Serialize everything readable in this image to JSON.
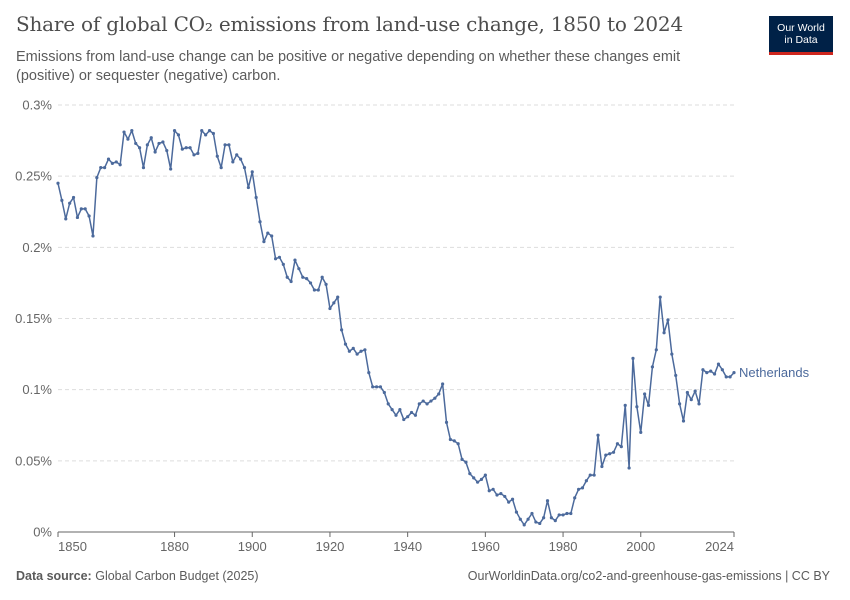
{
  "header": {
    "title": "Share of global CO₂ emissions from land-use change, 1850 to 2024",
    "subtitle": "Emissions from land-use change can be positive or negative depending on whether these changes emit (positive) or sequester (negative) carbon.",
    "logo_line1": "Our World",
    "logo_line2": "in Data"
  },
  "footer": {
    "source_label": "Data source:",
    "source_value": "Global Carbon Budget (2025)",
    "url_license": "OurWorldinData.org/co2-and-greenhouse-gas-emissions | CC BY"
  },
  "colors": {
    "series": "#4c6a9c",
    "grid": "#dddddd",
    "axis": "#666666",
    "logo_bg": "#002147",
    "logo_accent": "#ce261e"
  },
  "chart_data": {
    "type": "line",
    "title": "Share of global CO₂ emissions from land-use change, 1850 to 2024",
    "xlim": [
      1850,
      2024
    ],
    "ylim": [
      0,
      0.3
    ],
    "x_ticks": [
      1850,
      1880,
      1900,
      1920,
      1940,
      1960,
      1980,
      2000,
      2024
    ],
    "x_tick_labels": [
      "1850",
      "1880",
      "1900",
      "1920",
      "1940",
      "1960",
      "1980",
      "2000",
      "2024"
    ],
    "y_ticks": [
      0,
      0.05,
      0.1,
      0.15,
      0.2,
      0.25,
      0.3
    ],
    "y_tick_labels": [
      "0%",
      "0.05%",
      "0.1%",
      "0.15%",
      "0.2%",
      "0.25%",
      "0.3%"
    ],
    "grid": true,
    "legend": "end-label",
    "series": [
      {
        "name": "Netherlands",
        "x": [
          1850,
          1851,
          1852,
          1853,
          1854,
          1855,
          1856,
          1857,
          1858,
          1859,
          1860,
          1861,
          1862,
          1863,
          1864,
          1865,
          1866,
          1867,
          1868,
          1869,
          1870,
          1871,
          1872,
          1873,
          1874,
          1875,
          1876,
          1877,
          1878,
          1879,
          1880,
          1881,
          1882,
          1883,
          1884,
          1885,
          1886,
          1887,
          1888,
          1889,
          1890,
          1891,
          1892,
          1893,
          1894,
          1895,
          1896,
          1897,
          1898,
          1899,
          1900,
          1901,
          1902,
          1903,
          1904,
          1905,
          1906,
          1907,
          1908,
          1909,
          1910,
          1911,
          1912,
          1913,
          1914,
          1915,
          1916,
          1917,
          1918,
          1919,
          1920,
          1921,
          1922,
          1923,
          1924,
          1925,
          1926,
          1927,
          1928,
          1929,
          1930,
          1931,
          1932,
          1933,
          1934,
          1935,
          1936,
          1937,
          1938,
          1939,
          1940,
          1941,
          1942,
          1943,
          1944,
          1945,
          1946,
          1947,
          1948,
          1949,
          1950,
          1951,
          1952,
          1953,
          1954,
          1955,
          1956,
          1957,
          1958,
          1959,
          1960,
          1961,
          1962,
          1963,
          1964,
          1965,
          1966,
          1967,
          1968,
          1969,
          1970,
          1971,
          1972,
          1973,
          1974,
          1975,
          1976,
          1977,
          1978,
          1979,
          1980,
          1981,
          1982,
          1983,
          1984,
          1985,
          1986,
          1987,
          1988,
          1989,
          1990,
          1991,
          1992,
          1993,
          1994,
          1995,
          1996,
          1997,
          1998,
          1999,
          2000,
          2001,
          2002,
          2003,
          2004,
          2005,
          2006,
          2007,
          2008,
          2009,
          2010,
          2011,
          2012,
          2013,
          2014,
          2015,
          2016,
          2017,
          2018,
          2019,
          2020,
          2021,
          2022,
          2023,
          2024
        ],
        "values": [
          0.245,
          0.233,
          0.22,
          0.231,
          0.235,
          0.221,
          0.227,
          0.227,
          0.222,
          0.208,
          0.249,
          0.256,
          0.256,
          0.262,
          0.259,
          0.26,
          0.258,
          0.281,
          0.276,
          0.282,
          0.273,
          0.27,
          0.256,
          0.272,
          0.277,
          0.267,
          0.273,
          0.274,
          0.268,
          0.255,
          0.282,
          0.279,
          0.269,
          0.27,
          0.27,
          0.265,
          0.266,
          0.282,
          0.279,
          0.282,
          0.28,
          0.264,
          0.256,
          0.272,
          0.272,
          0.26,
          0.265,
          0.262,
          0.256,
          0.242,
          0.253,
          0.235,
          0.218,
          0.204,
          0.21,
          0.208,
          0.192,
          0.193,
          0.188,
          0.179,
          0.176,
          0.191,
          0.185,
          0.179,
          0.178,
          0.175,
          0.17,
          0.17,
          0.179,
          0.174,
          0.157,
          0.161,
          0.165,
          0.142,
          0.132,
          0.127,
          0.129,
          0.125,
          0.127,
          0.128,
          0.112,
          0.102,
          0.102,
          0.102,
          0.098,
          0.09,
          0.086,
          0.082,
          0.086,
          0.079,
          0.081,
          0.084,
          0.082,
          0.09,
          0.092,
          0.09,
          0.092,
          0.094,
          0.097,
          0.104,
          0.077,
          0.065,
          0.064,
          0.062,
          0.051,
          0.049,
          0.041,
          0.038,
          0.035,
          0.037,
          0.04,
          0.029,
          0.03,
          0.026,
          0.027,
          0.025,
          0.021,
          0.023,
          0.014,
          0.009,
          0.005,
          0.009,
          0.013,
          0.007,
          0.006,
          0.01,
          0.022,
          0.01,
          0.008,
          0.012,
          0.012,
          0.013,
          0.013,
          0.024,
          0.03,
          0.031,
          0.036,
          0.04,
          0.04,
          0.068,
          0.046,
          0.054,
          0.055,
          0.056,
          0.062,
          0.06,
          0.089,
          0.045,
          0.122,
          0.088,
          0.07,
          0.097,
          0.089,
          0.116,
          0.128,
          0.165,
          0.14,
          0.149,
          0.125,
          0.11,
          0.09,
          0.078,
          0.098,
          0.093,
          0.099,
          0.09,
          0.114,
          0.112,
          0.113,
          0.111,
          0.118,
          0.114,
          0.109,
          0.109,
          0.112
        ]
      }
    ]
  }
}
